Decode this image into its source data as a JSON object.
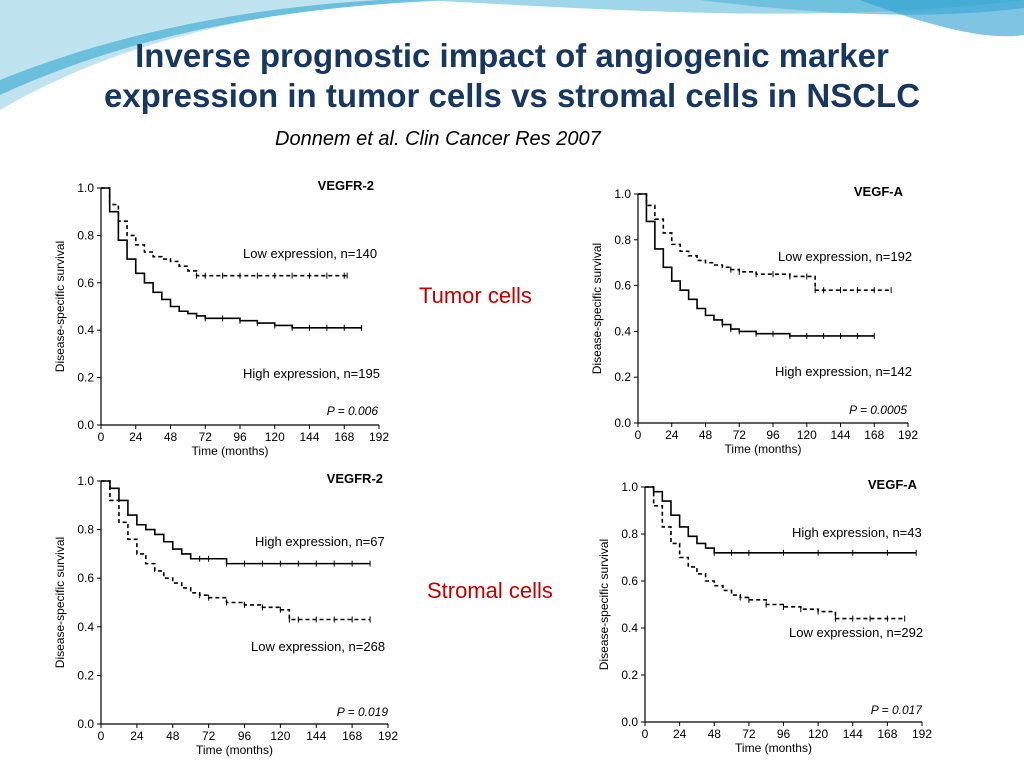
{
  "slide": {
    "title_line1": "Inverse prognostic impact of angiogenic marker",
    "title_line2": "expression in tumor cells vs stromal cells in NSCLC",
    "citation": "Donnem et al. Clin Cancer Res 2007",
    "row_labels": {
      "tumor": "Tumor cells",
      "stromal": "Stromal cells"
    }
  },
  "colors": {
    "title": "#17375e",
    "row_label": "#c00000",
    "swoosh": "#5bb8d8"
  },
  "chart_data": [
    {
      "type": "line",
      "title": "VEGFR-2",
      "group": "Tumor cells",
      "xlabel": "Time (months)",
      "ylabel": "Disease-specific survival",
      "xlim": [
        0,
        192
      ],
      "ylim": [
        0,
        1
      ],
      "xticks": [
        "0",
        "24",
        "48",
        "72",
        "96",
        "120",
        "144",
        "168",
        "192"
      ],
      "yticks": [
        "0.0",
        "0.2",
        "0.4",
        "0.6",
        "0.8",
        "1.0"
      ],
      "pvalue": "P = 0.006",
      "series": [
        {
          "name": "Low expression, n=140",
          "dashed": true,
          "x": [
            0,
            6,
            12,
            18,
            24,
            30,
            36,
            42,
            48,
            54,
            60,
            66,
            72,
            84,
            96,
            108,
            120,
            132,
            144,
            156,
            168,
            170
          ],
          "y": [
            1.0,
            0.93,
            0.86,
            0.8,
            0.76,
            0.73,
            0.71,
            0.7,
            0.69,
            0.67,
            0.65,
            0.63,
            0.63,
            0.63,
            0.63,
            0.63,
            0.63,
            0.63,
            0.63,
            0.63,
            0.63,
            0.63
          ]
        },
        {
          "name": "High expression, n=195",
          "dashed": false,
          "x": [
            0,
            6,
            12,
            18,
            24,
            30,
            36,
            42,
            48,
            54,
            60,
            66,
            72,
            84,
            96,
            108,
            120,
            132,
            144,
            156,
            168,
            180
          ],
          "y": [
            1.0,
            0.9,
            0.78,
            0.7,
            0.64,
            0.6,
            0.56,
            0.53,
            0.5,
            0.48,
            0.47,
            0.46,
            0.45,
            0.45,
            0.44,
            0.43,
            0.42,
            0.41,
            0.41,
            0.41,
            0.41,
            0.41
          ]
        }
      ]
    },
    {
      "type": "line",
      "title": "VEGF-A",
      "group": "Tumor cells",
      "xlabel": "Time (months)",
      "ylabel": "Disease-specific survival",
      "xlim": [
        0,
        192
      ],
      "ylim": [
        0,
        1
      ],
      "xticks": [
        "0",
        "24",
        "48",
        "72",
        "96",
        "120",
        "144",
        "168",
        "192"
      ],
      "yticks": [
        "0.0",
        "0.2",
        "0.4",
        "0.6",
        "0.8",
        "1.0"
      ],
      "pvalue": "P = 0.0005",
      "series": [
        {
          "name": "Low expression, n=192",
          "dashed": true,
          "x": [
            0,
            6,
            12,
            18,
            24,
            30,
            36,
            42,
            48,
            54,
            60,
            66,
            72,
            84,
            96,
            108,
            120,
            126,
            132,
            144,
            156,
            168,
            180
          ],
          "y": [
            1.0,
            0.95,
            0.89,
            0.83,
            0.78,
            0.75,
            0.73,
            0.71,
            0.7,
            0.69,
            0.68,
            0.67,
            0.66,
            0.65,
            0.65,
            0.64,
            0.64,
            0.58,
            0.58,
            0.58,
            0.58,
            0.58,
            0.58
          ]
        },
        {
          "name": "High expression, n=142",
          "dashed": false,
          "x": [
            0,
            6,
            12,
            18,
            24,
            30,
            36,
            42,
            48,
            54,
            60,
            66,
            72,
            84,
            96,
            108,
            120,
            132,
            144,
            156,
            168
          ],
          "y": [
            1.0,
            0.88,
            0.76,
            0.68,
            0.62,
            0.58,
            0.54,
            0.5,
            0.47,
            0.45,
            0.43,
            0.41,
            0.4,
            0.39,
            0.39,
            0.38,
            0.38,
            0.38,
            0.38,
            0.38,
            0.38
          ]
        }
      ]
    },
    {
      "type": "line",
      "title": "VEGFR-2",
      "group": "Stromal cells",
      "xlabel": "Time (months)",
      "ylabel": "Disease-specific survival",
      "xlim": [
        0,
        192
      ],
      "ylim": [
        0,
        1
      ],
      "xticks": [
        "0",
        "24",
        "48",
        "72",
        "96",
        "120",
        "144",
        "168",
        "192"
      ],
      "yticks": [
        "0.0",
        "0.2",
        "0.4",
        "0.6",
        "0.8",
        "1.0"
      ],
      "pvalue": "P = 0.019",
      "series": [
        {
          "name": "High expression, n=67",
          "dashed": false,
          "x": [
            0,
            6,
            12,
            18,
            24,
            30,
            36,
            42,
            48,
            54,
            60,
            66,
            72,
            84,
            96,
            108,
            120,
            132,
            144,
            156,
            168,
            180
          ],
          "y": [
            1.0,
            0.97,
            0.92,
            0.86,
            0.82,
            0.8,
            0.78,
            0.75,
            0.72,
            0.7,
            0.68,
            0.68,
            0.68,
            0.66,
            0.66,
            0.66,
            0.66,
            0.66,
            0.66,
            0.66,
            0.66,
            0.66
          ]
        },
        {
          "name": "Low expression, n=268",
          "dashed": true,
          "x": [
            0,
            6,
            12,
            18,
            24,
            30,
            36,
            42,
            48,
            54,
            60,
            66,
            72,
            84,
            96,
            108,
            120,
            126,
            132,
            144,
            156,
            168,
            180
          ],
          "y": [
            1.0,
            0.92,
            0.83,
            0.76,
            0.7,
            0.66,
            0.63,
            0.6,
            0.58,
            0.56,
            0.54,
            0.53,
            0.52,
            0.5,
            0.49,
            0.48,
            0.47,
            0.43,
            0.43,
            0.43,
            0.43,
            0.43,
            0.43
          ]
        }
      ]
    },
    {
      "type": "line",
      "title": "VEGF-A",
      "group": "Stromal cells",
      "xlabel": "Time (months)",
      "ylabel": "Disease-specific survival",
      "xlim": [
        0,
        192
      ],
      "ylim": [
        0,
        1
      ],
      "xticks": [
        "0",
        "24",
        "48",
        "72",
        "96",
        "120",
        "144",
        "168",
        "192"
      ],
      "yticks": [
        "0.0",
        "0.2",
        "0.4",
        "0.6",
        "0.8",
        "1.0"
      ],
      "pvalue": "P = 0.017",
      "series": [
        {
          "name": "High expression, n=43",
          "dashed": false,
          "x": [
            0,
            6,
            12,
            18,
            24,
            30,
            36,
            42,
            48,
            60,
            72,
            96,
            120,
            144,
            168,
            188
          ],
          "y": [
            1.0,
            0.98,
            0.94,
            0.88,
            0.83,
            0.79,
            0.76,
            0.74,
            0.72,
            0.72,
            0.72,
            0.72,
            0.72,
            0.72,
            0.72,
            0.72
          ]
        },
        {
          "name": "Low expression, n=292",
          "dashed": true,
          "x": [
            0,
            6,
            12,
            18,
            24,
            30,
            36,
            42,
            48,
            54,
            60,
            66,
            72,
            84,
            96,
            108,
            120,
            132,
            144,
            156,
            168,
            180
          ],
          "y": [
            1.0,
            0.92,
            0.83,
            0.76,
            0.7,
            0.66,
            0.63,
            0.6,
            0.58,
            0.56,
            0.54,
            0.53,
            0.52,
            0.5,
            0.49,
            0.48,
            0.47,
            0.44,
            0.44,
            0.44,
            0.44,
            0.44
          ]
        }
      ]
    }
  ]
}
